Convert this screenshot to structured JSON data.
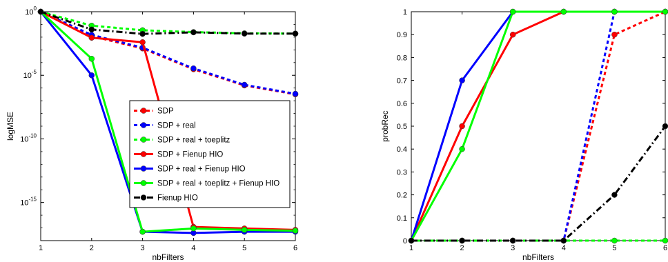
{
  "chart_data": [
    {
      "type": "line",
      "xlabel": "nbFilters",
      "ylabel": "logMSE",
      "yscale": "log",
      "xlim": [
        1,
        6
      ],
      "ylim": [
        1e-18,
        1
      ],
      "xticks": [
        1,
        2,
        3,
        4,
        5,
        6
      ],
      "yticks": [
        {
          "value": 1,
          "base": "10",
          "exp": "0"
        },
        {
          "value": 1e-05,
          "base": "10",
          "exp": "-5"
        },
        {
          "value": 1e-10,
          "base": "10",
          "exp": "-10"
        },
        {
          "value": 1e-15,
          "base": "10",
          "exp": "-15"
        }
      ],
      "grid": false,
      "legend": "right",
      "x": [
        1,
        2,
        3,
        4,
        5,
        6
      ],
      "series": [
        {
          "name": "SDP",
          "color": "#ff0000",
          "dash": "dot",
          "values": [
            1,
            0.012,
            0.0013,
            3e-05,
            1.6e-06,
            3.2e-07
          ]
        },
        {
          "name": "SDP + real",
          "color": "#0000ff",
          "dash": "dot",
          "values": [
            1,
            0.015,
            0.0015,
            3.5e-05,
            1.8e-06,
            3.5e-07
          ]
        },
        {
          "name": "SDP + real + toeplitz",
          "color": "#00ff00",
          "dash": "dot",
          "values": [
            1,
            0.08,
            0.035,
            0.025,
            0.02,
            0.019
          ]
        },
        {
          "name": "SDP + Fienup HIO",
          "color": "#ff0000",
          "dash": "solid",
          "values": [
            1,
            0.009,
            0.004,
            1.2e-17,
            9e-18,
            7e-18
          ]
        },
        {
          "name": "SDP + real + Fienup HIO",
          "color": "#0000ff",
          "dash": "solid",
          "values": [
            1,
            1e-05,
            5e-18,
            4e-18,
            5e-18,
            5e-18
          ]
        },
        {
          "name": "SDP + real + toeplitz + Fienup HIO",
          "color": "#00ff00",
          "dash": "solid",
          "values": [
            1,
            0.0002,
            5e-18,
            9e-18,
            7e-18,
            6e-18
          ]
        },
        {
          "name": "Fienup HIO",
          "color": "#000000",
          "dash": "dashdot",
          "values": [
            1,
            0.04,
            0.018,
            0.024,
            0.019,
            0.019
          ]
        }
      ]
    },
    {
      "type": "line",
      "xlabel": "nbFilters",
      "ylabel": "probRec",
      "xlim": [
        1,
        6
      ],
      "ylim": [
        0,
        1
      ],
      "xticks": [
        1,
        2,
        3,
        4,
        5,
        6
      ],
      "yticks": [
        "0",
        "0.1",
        "0.2",
        "0.3",
        "0.4",
        "0.5",
        "0.6",
        "0.7",
        "0.8",
        "0.9",
        "1"
      ],
      "grid": false,
      "x": [
        1,
        2,
        3,
        4,
        5,
        6
      ],
      "series": [
        {
          "color": "#ff0000",
          "dash": "dot",
          "values": [
            0,
            0,
            0,
            0,
            0.9,
            1
          ]
        },
        {
          "color": "#0000ff",
          "dash": "dot",
          "values": [
            0,
            0,
            0,
            0,
            1,
            1
          ]
        },
        {
          "color": "#00ff00",
          "dash": "dot",
          "values": [
            0,
            0,
            0,
            0,
            0,
            0
          ]
        },
        {
          "color": "#ff0000",
          "dash": "solid",
          "values": [
            0,
            0.5,
            0.9,
            1,
            1,
            1
          ]
        },
        {
          "color": "#0000ff",
          "dash": "solid",
          "values": [
            0,
            0.7,
            1,
            1,
            1,
            1
          ]
        },
        {
          "color": "#00ff00",
          "dash": "solid",
          "values": [
            0,
            0.4,
            1,
            1,
            1,
            1
          ]
        },
        {
          "color": "#000000",
          "dash": "dashdot",
          "values": [
            0,
            0,
            0,
            0,
            0.2,
            0.5
          ]
        }
      ]
    }
  ]
}
